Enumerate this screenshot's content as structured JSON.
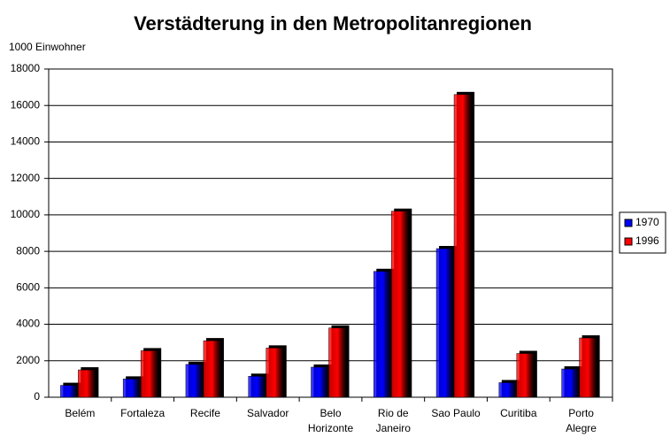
{
  "chart_data": {
    "type": "bar",
    "title": "Verstädterung in den Metropolitanregionen",
    "y_label": "1000 Einwohner",
    "categories": [
      "Belém",
      "Fortaleza",
      "Recife",
      "Salvador",
      "Belo\nHorizonte",
      "Rio de\nJaneiro",
      "Sao Paulo",
      "Curitiba",
      "Porto\nAlegre"
    ],
    "series": [
      {
        "name": "1970",
        "color": "#0000ff",
        "values": [
          650,
          1000,
          1800,
          1150,
          1650,
          6900,
          8150,
          800,
          1550
        ]
      },
      {
        "name": "1996",
        "color": "#ff0000",
        "values": [
          1500,
          2550,
          3100,
          2700,
          3800,
          10200,
          16600,
          2400,
          3250
        ]
      }
    ],
    "ylim": [
      0,
      18000
    ],
    "yticks": [
      0,
      2000,
      4000,
      6000,
      8000,
      10000,
      12000,
      14000,
      16000,
      18000
    ],
    "grid": true,
    "legend": "right"
  }
}
